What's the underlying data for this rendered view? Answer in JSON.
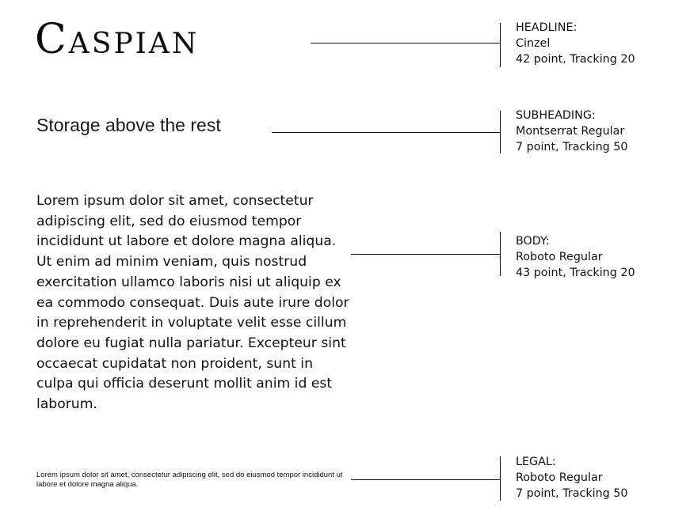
{
  "headline": {
    "text": "Caspian"
  },
  "subheading": {
    "text": "Storage above the rest"
  },
  "body": {
    "text": "Lorem ipsum dolor sit amet, consectetur adipiscing elit, sed do eiusmod tempor incididunt ut labore et dolore magna aliqua. Ut enim ad minim veniam, quis nostrud exercitation ullamco laboris nisi ut aliquip ex ea commodo consequat. Duis aute irure dolor in reprehenderit in voluptate velit esse cillum dolore eu fugiat nulla pariatur. Excepteur sint occaecat cupidatat non proident, sunt in culpa qui officia deserunt mollit anim id est laborum."
  },
  "legal": {
    "text": "Lorem ipsum dolor sit amet, consectetur adipiscing elit, sed do eiusmod tempor incididunt ut labore et dolore magna aliqua."
  },
  "specs": {
    "headline": {
      "label": "HEADLINE:",
      "font": "Cinzel",
      "size": "42 point, Tracking 20"
    },
    "subheading": {
      "label": "SUBHEADING:",
      "font": "Montserrat Regular",
      "size": "7 point, Tracking 50"
    },
    "body": {
      "label": "BODY:",
      "font": "Roboto Regular",
      "size": "43 point, Tracking 20"
    },
    "legal": {
      "label": "LEGAL:",
      "font": "Roboto Regular",
      "size": "7 point, Tracking 50"
    }
  },
  "colors": {
    "text": "#111111",
    "background": "#ffffff"
  }
}
